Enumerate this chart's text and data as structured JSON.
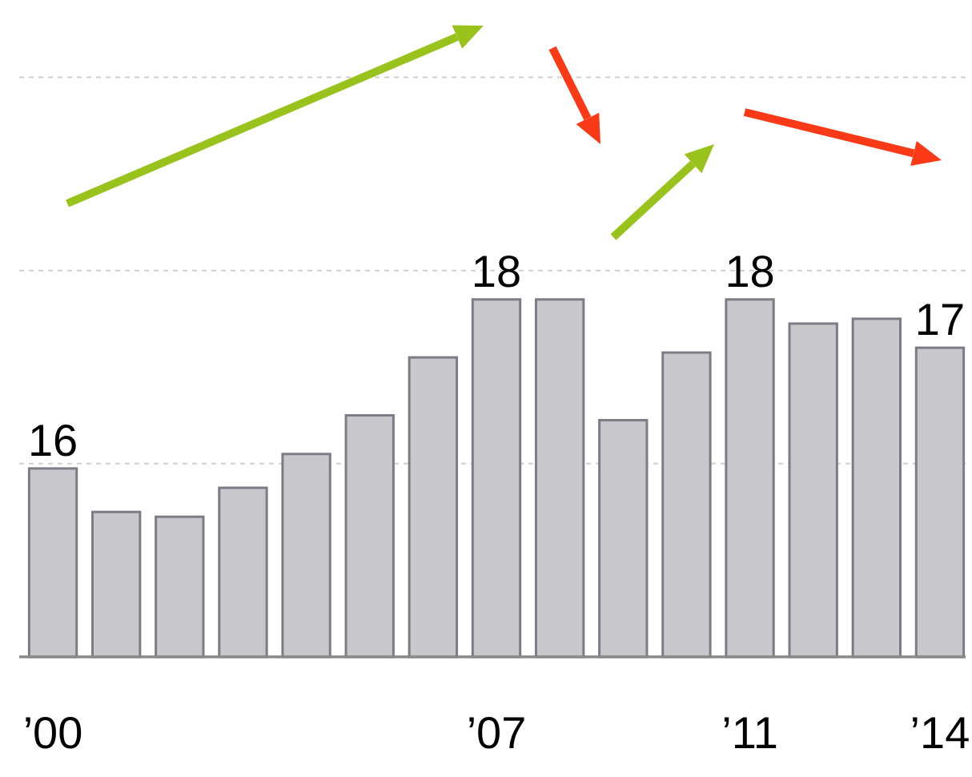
{
  "chart_data": {
    "type": "bar",
    "categories": [
      "’00",
      null,
      null,
      null,
      null,
      null,
      null,
      "’07",
      null,
      null,
      null,
      "’11",
      null,
      null,
      "’14"
    ],
    "values": [
      15.95,
      15.5,
      15.45,
      15.75,
      16.1,
      16.5,
      17.1,
      17.7,
      17.7,
      16.45,
      17.15,
      17.7,
      17.45,
      17.5,
      17.2
    ],
    "value_labels": [
      "16",
      null,
      null,
      null,
      null,
      null,
      null,
      "18",
      null,
      null,
      null,
      "18",
      null,
      null,
      "17"
    ],
    "color": "#c8c7cc",
    "ylim": [
      14,
      20.8
    ],
    "yticks": [
      {
        "value": 14,
        "label": null
      },
      {
        "value": 16,
        "label": null
      },
      {
        "value": 18,
        "label": null
      },
      {
        "value": 20,
        "label": null
      }
    ],
    "grid": "y",
    "tick_labels": "x"
  }
}
